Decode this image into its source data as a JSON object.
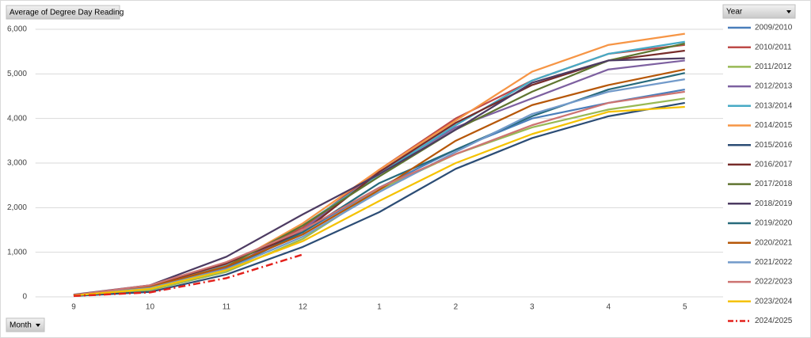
{
  "chart_data": {
    "type": "line",
    "value_field_button": "Average of Degree Day Reading",
    "legend_title": "Year",
    "axis_field_button": "Month",
    "categories": [
      "9",
      "10",
      "11",
      "12",
      "1",
      "2",
      "3",
      "4",
      "5"
    ],
    "ylim": [
      0,
      6000
    ],
    "yticks": [
      0,
      {
        "value": 1000,
        "label": "1,000"
      },
      {
        "value": 2000,
        "label": "2,000"
      },
      {
        "value": 3000,
        "label": "3,000"
      },
      {
        "value": 4000,
        "label": "4,000"
      },
      {
        "value": 5000,
        "label": "5,000"
      },
      {
        "value": 6000,
        "label": "6,000"
      }
    ],
    "grid": true,
    "legend": "right",
    "series": [
      {
        "name": "2009/2010",
        "color": "#4a7ebb",
        "values": [
          30,
          180,
          620,
          1450,
          2450,
          3300,
          4000,
          4350,
          4650
        ]
      },
      {
        "name": "2010/2011",
        "color": "#be4b48",
        "values": [
          40,
          240,
          720,
          1550,
          2850,
          4000,
          4850,
          5450,
          5650
        ]
      },
      {
        "name": "2011/2012",
        "color": "#98b954",
        "values": [
          20,
          150,
          560,
          1300,
          2400,
          3200,
          3800,
          4200,
          4450
        ]
      },
      {
        "name": "2012/2013",
        "color": "#7d60a0",
        "values": [
          30,
          200,
          650,
          1500,
          2800,
          3800,
          4450,
          5100,
          5300
        ]
      },
      {
        "name": "2013/2014",
        "color": "#46aac5",
        "values": [
          40,
          220,
          700,
          1600,
          2750,
          3850,
          4850,
          5450,
          5720
        ]
      },
      {
        "name": "2014/2015",
        "color": "#f69545",
        "values": [
          30,
          210,
          680,
          1650,
          2850,
          3950,
          5050,
          5650,
          5900
        ]
      },
      {
        "name": "2015/2016",
        "color": "#2c4d75",
        "values": [
          20,
          110,
          500,
          1120,
          1900,
          2870,
          3560,
          4050,
          4350
        ]
      },
      {
        "name": "2016/2017",
        "color": "#772c2a",
        "values": [
          40,
          250,
          750,
          1450,
          2800,
          3900,
          4750,
          5300,
          5520
        ]
      },
      {
        "name": "2017/2018",
        "color": "#5f7530",
        "values": [
          30,
          220,
          680,
          1600,
          2700,
          3750,
          4600,
          5300,
          5680
        ]
      },
      {
        "name": "2018/2019",
        "color": "#4d3b62",
        "values": [
          50,
          260,
          900,
          1850,
          2750,
          3750,
          4800,
          5300,
          5350
        ]
      },
      {
        "name": "2019/2020",
        "color": "#276a7c",
        "values": [
          30,
          190,
          620,
          1450,
          2550,
          3300,
          4050,
          4650,
          5020
        ]
      },
      {
        "name": "2020/2021",
        "color": "#b65708",
        "values": [
          40,
          230,
          680,
          1400,
          2400,
          3500,
          4300,
          4750,
          5100
        ]
      },
      {
        "name": "2021/2022",
        "color": "#729aca",
        "values": [
          30,
          200,
          620,
          1350,
          2350,
          3250,
          4100,
          4600,
          4880
        ]
      },
      {
        "name": "2022/2023",
        "color": "#cd7472",
        "values": [
          40,
          260,
          780,
          1500,
          2450,
          3200,
          3850,
          4350,
          4600
        ]
      },
      {
        "name": "2023/2024",
        "color": "#f5c200",
        "values": [
          30,
          180,
          600,
          1250,
          2150,
          3000,
          3650,
          4150,
          4260
        ]
      },
      {
        "name": "2024/2025",
        "color": "#e3201b",
        "line_style": "dash-dot",
        "values": [
          20,
          100,
          420,
          950,
          null,
          null,
          null,
          null,
          null
        ]
      }
    ]
  }
}
